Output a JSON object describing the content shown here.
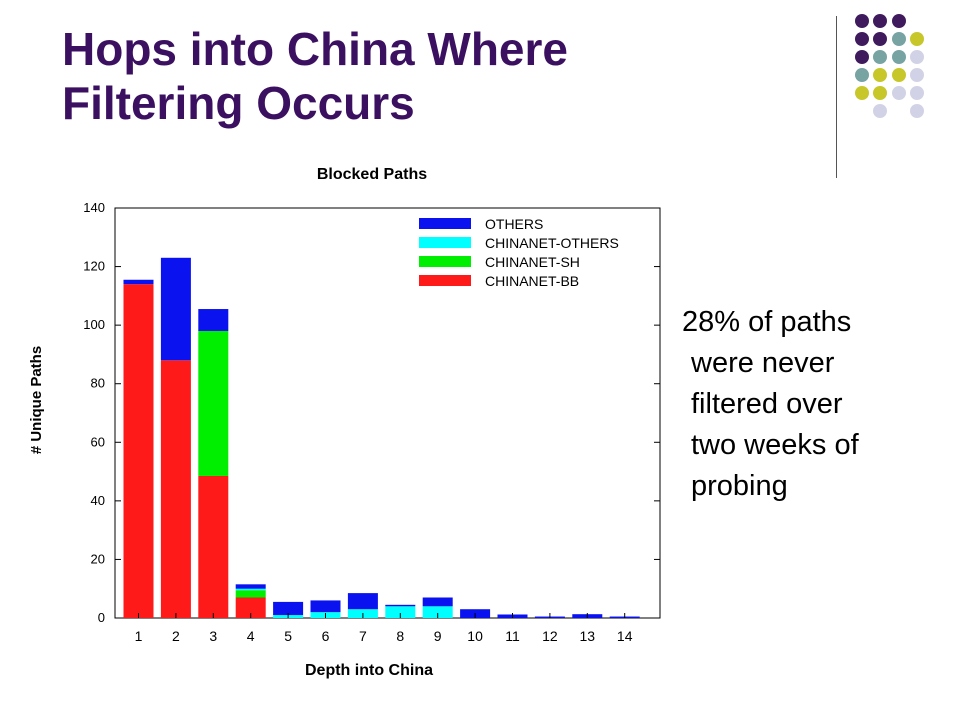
{
  "slide": {
    "title_lines": [
      "Hops into China Where",
      "Filtering Occurs"
    ],
    "note_lines": [
      "28% of paths",
      "were never",
      "filtered over",
      "two weeks of",
      "probing"
    ],
    "note_indent": [
      false,
      true,
      true,
      true,
      true
    ]
  },
  "decor": {
    "dot_colors": {
      "purple": "#3f1b5e",
      "teal": "#77a3a3",
      "yellow": "#c7c72a",
      "lavender": "#d2d2e6"
    },
    "dot_rows": [
      [
        "purple",
        "purple",
        "purple"
      ],
      [
        "purple",
        "purple",
        "teal",
        "yellow"
      ],
      [
        "purple",
        "teal",
        "teal",
        "lavender"
      ],
      [
        "teal",
        "yellow",
        "yellow",
        "lavender"
      ],
      [
        "yellow",
        "yellow",
        "lavender",
        "lavender"
      ],
      [
        "lavender",
        "lavender"
      ]
    ]
  },
  "chart_data": {
    "type": "bar",
    "stacked": true,
    "title": "Blocked Paths",
    "xlabel": "Depth into China",
    "ylabel": "# Unique Paths",
    "ylim": [
      0,
      140
    ],
    "yticks": [
      0,
      20,
      40,
      60,
      80,
      100,
      120,
      140
    ],
    "categories": [
      "1",
      "2",
      "3",
      "4",
      "5",
      "6",
      "7",
      "8",
      "9",
      "10",
      "11",
      "12",
      "13",
      "14"
    ],
    "legend_position": "top-right",
    "series": [
      {
        "name": "CHINANET-BB",
        "color": "#ff1a1a",
        "values": [
          114,
          88,
          48.5,
          7,
          0,
          0,
          0,
          0,
          0,
          0,
          0,
          0,
          0,
          0
        ]
      },
      {
        "name": "CHINANET-SH",
        "color": "#00ee00",
        "values": [
          0,
          0,
          49.5,
          2.5,
          0,
          0,
          0,
          0,
          0,
          0,
          0,
          0,
          0,
          0
        ]
      },
      {
        "name": "CHINANET-OTHERS",
        "color": "#00ffff",
        "values": [
          0,
          0,
          0,
          0.5,
          1,
          2,
          3,
          4,
          4,
          0,
          0,
          0,
          0,
          0
        ]
      },
      {
        "name": "OTHERS",
        "color": "#0a12f0",
        "values": [
          1.5,
          35,
          7.5,
          1.5,
          4.5,
          4,
          5.5,
          0.5,
          3,
          3,
          1.2,
          0.5,
          1.3,
          0.5
        ]
      }
    ]
  }
}
